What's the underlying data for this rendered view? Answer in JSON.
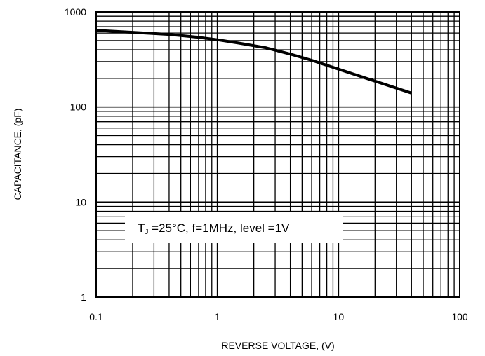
{
  "chart_data": {
    "type": "line",
    "title": "",
    "xlabel": "REVERSE VOLTAGE, (V)",
    "ylabel": "CAPACITANCE, (pF)",
    "x_scale": "log",
    "y_scale": "log",
    "xlim": [
      0.1,
      100
    ],
    "ylim": [
      1,
      1000
    ],
    "grid": true,
    "x_ticks": [
      "0.1",
      "1",
      "10",
      "100"
    ],
    "y_ticks": [
      "1",
      "10",
      "100",
      "1000"
    ],
    "annotation": {
      "main": "T",
      "sub": "J",
      "rest": " =25°C, f=1MHz, level =1V"
    },
    "series": [
      {
        "x": [
          0.1,
          0.2,
          0.4,
          0.7,
          1.0,
          1.5,
          2.5,
          4,
          6,
          10,
          17,
          40
        ],
        "y": [
          640,
          610,
          580,
          540,
          510,
          470,
          420,
          360,
          310,
          250,
          200,
          140
        ]
      }
    ]
  }
}
